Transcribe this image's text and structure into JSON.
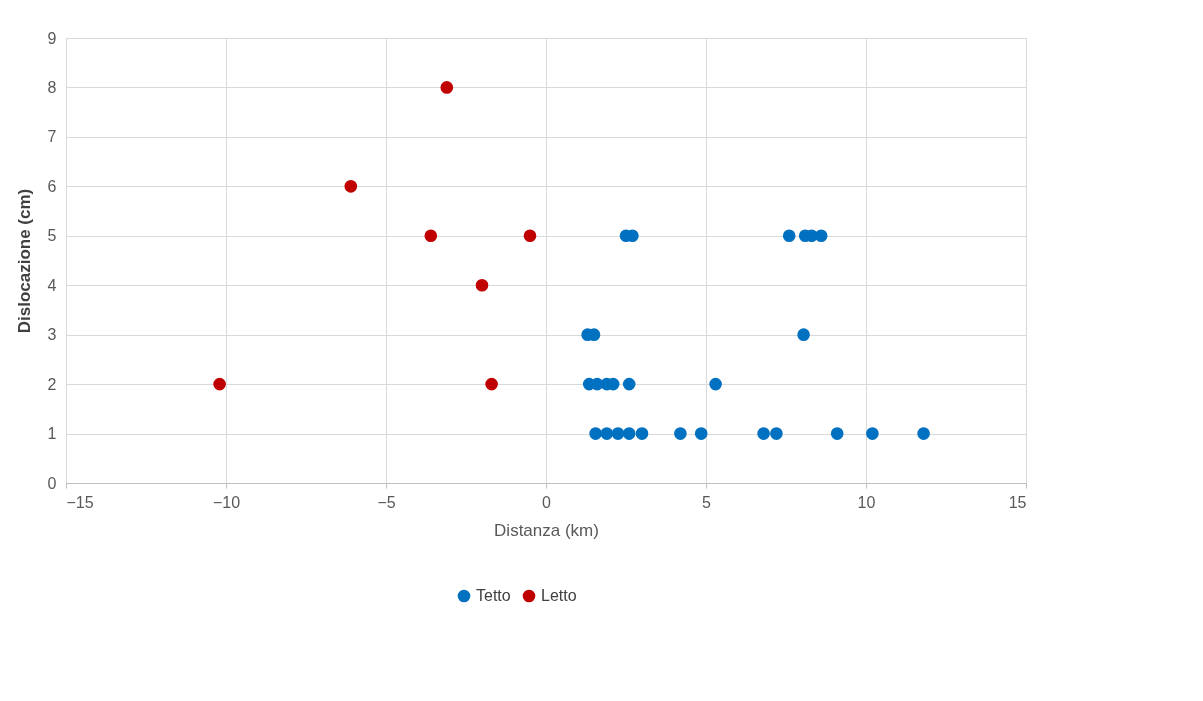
{
  "chart_data": {
    "type": "scatter",
    "xlabel": "Distanza (km)",
    "ylabel": "Dislocazione (cm)",
    "xlim": [
      -15,
      15
    ],
    "xticks": [
      -15,
      -10,
      -5,
      0,
      5,
      10,
      15
    ],
    "ylim": [
      0,
      9
    ],
    "yticks": [
      0,
      1,
      2,
      3,
      4,
      5,
      6,
      7,
      8,
      9
    ],
    "grid": true,
    "legend": "bottom",
    "marker": "circle",
    "series": [
      {
        "name": "Tetto",
        "color": "#0070c0",
        "x": [
          2.5,
          2.7,
          7.6,
          8.1,
          8.3,
          8.6,
          1.3,
          1.5,
          8.05,
          1.35,
          1.6,
          1.9,
          2.1,
          2.6,
          5.3,
          1.55,
          1.9,
          2.25,
          2.6,
          3.0,
          4.2,
          4.85,
          6.8,
          7.2,
          9.1,
          10.2,
          11.8
        ],
        "values": [
          5,
          5,
          5,
          5,
          5,
          5,
          3,
          3,
          3,
          2,
          2,
          2,
          2,
          2,
          2,
          1,
          1,
          1,
          1,
          1,
          1,
          1,
          1,
          1,
          1,
          1,
          1
        ]
      },
      {
        "name": "Letto",
        "color": "#c00000",
        "x": [
          -10.2,
          -6.1,
          -3.6,
          -3.1,
          -2.0,
          -1.7,
          -0.5
        ],
        "values": [
          2,
          6,
          5,
          8,
          4,
          2,
          5
        ]
      }
    ]
  }
}
